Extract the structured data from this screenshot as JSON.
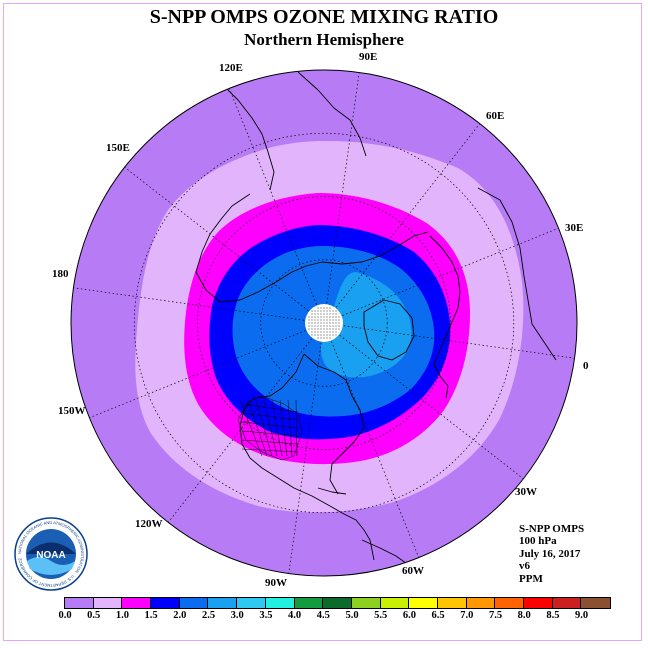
{
  "title": "S-NPP OMPS OZONE MIXING RATIO",
  "subtitle": "Northern Hemisphere",
  "longitude_labels": [
    "90E",
    "60E",
    "30E",
    "0",
    "30W",
    "60W",
    "90W",
    "120W",
    "150W",
    "180",
    "150E",
    "120E"
  ],
  "info": {
    "instrument": "S-NPP OMPS",
    "level": "100 hPa",
    "date": "July 16, 2017",
    "version": "v6",
    "units": "PPM"
  },
  "logo": {
    "name": "NOAA",
    "ring_text": "NATIONAL OCEANIC AND ATMOSPHERIC ADMINISTRATION · U.S. DEPARTMENT OF COMMERCE"
  },
  "colorbar": {
    "ticks": [
      "0.0",
      "0.5",
      "1.0",
      "1.5",
      "2.0",
      "2.5",
      "3.0",
      "3.5",
      "4.0",
      "4.5",
      "5.0",
      "5.5",
      "6.0",
      "6.5",
      "7.0",
      "7.5",
      "8.0",
      "8.5",
      "9.0"
    ],
    "colors": [
      "#b77cf5",
      "#e2b4fb",
      "#ff00ff",
      "#0000ff",
      "#0b6cf0",
      "#1aa0f0",
      "#2ec8f0",
      "#22f0e0",
      "#139b3f",
      "#0a6b2b",
      "#8cd020",
      "#c8f000",
      "#ffff00",
      "#ffc400",
      "#ff9800",
      "#ff6400",
      "#ff0000",
      "#cc2020",
      "#8b5030"
    ]
  },
  "map_colors": {
    "coast": "#000000",
    "graticule": "#000000",
    "pole": "#ffffff"
  }
}
